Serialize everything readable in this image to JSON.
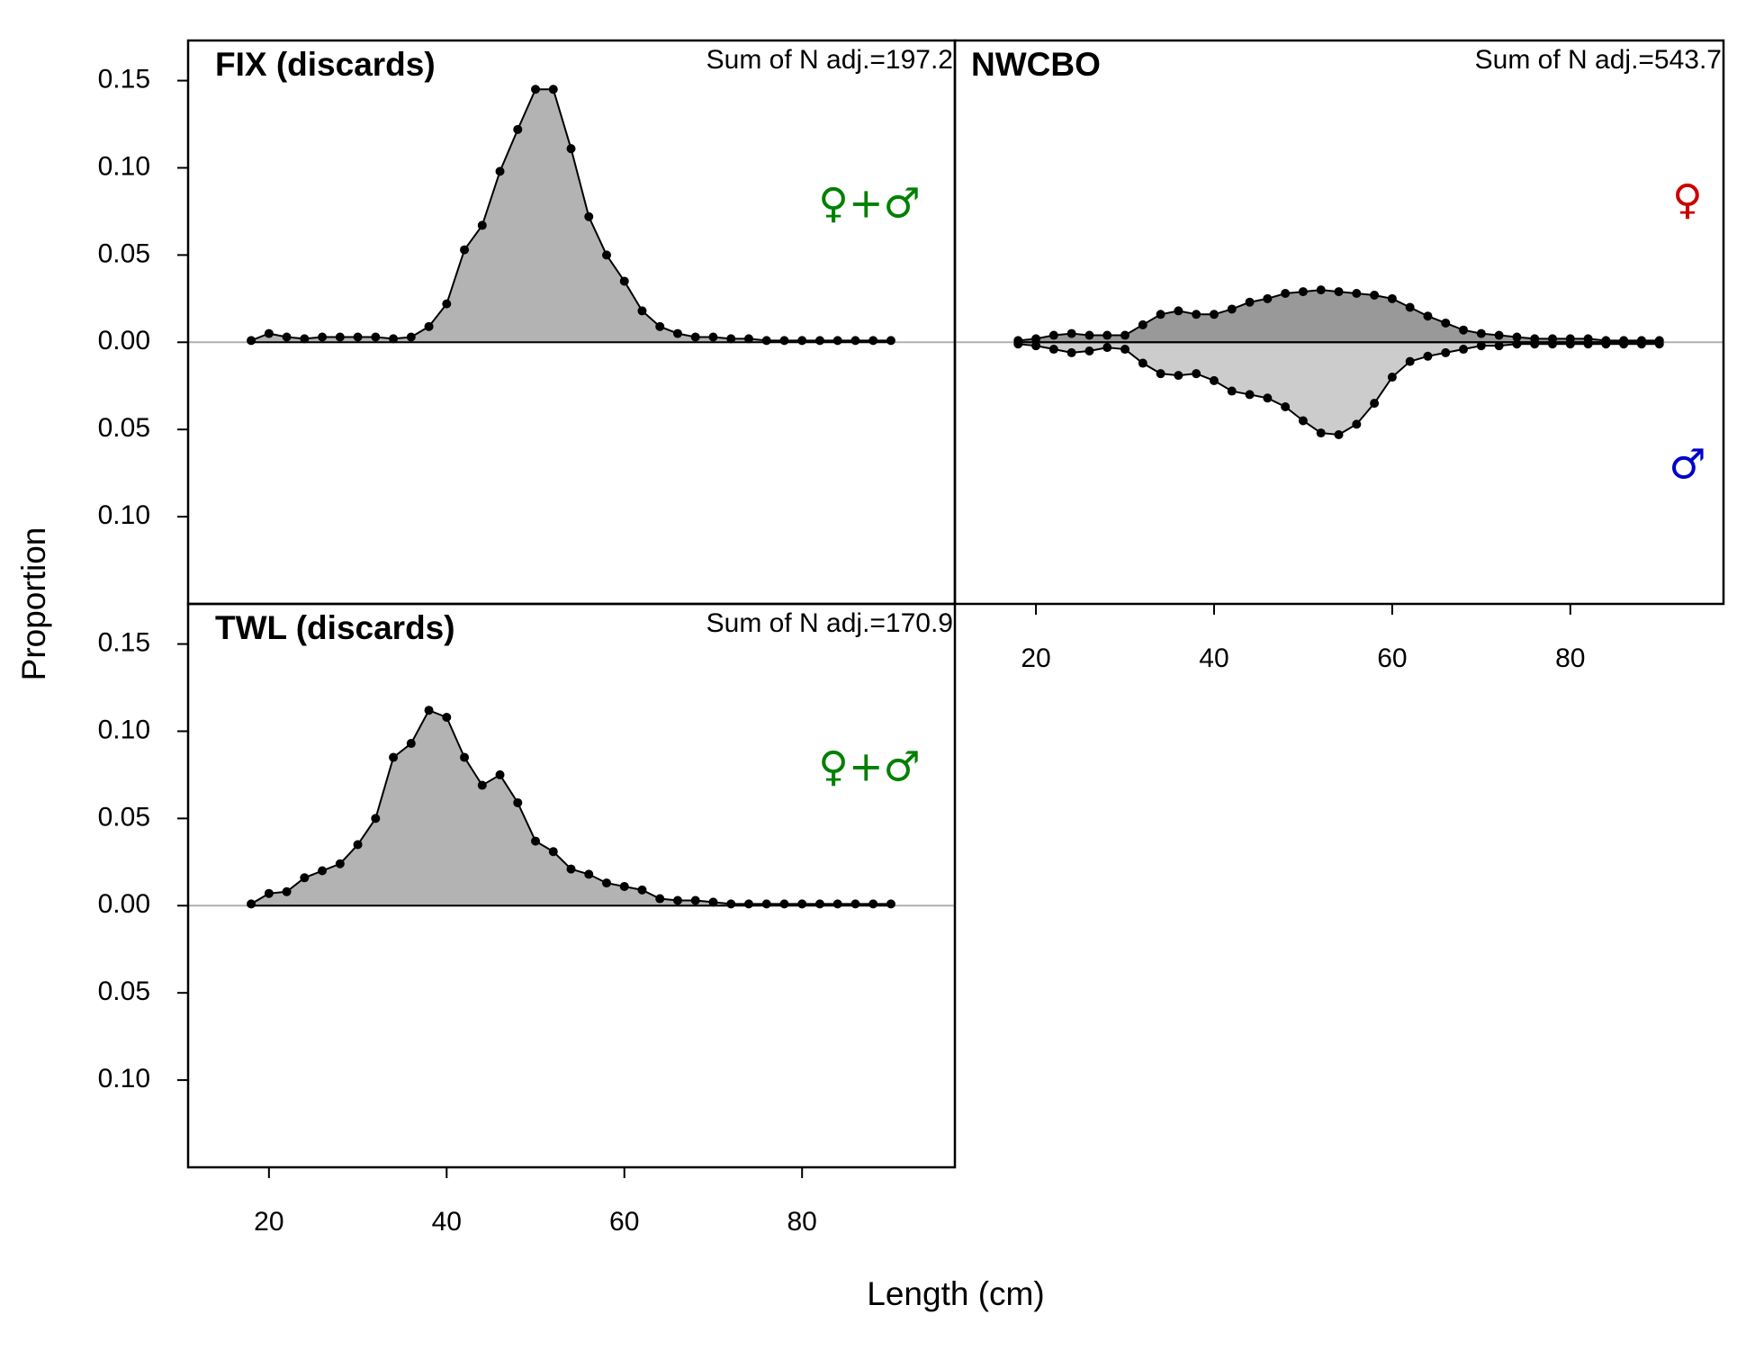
{
  "xlabel": "Length (cm)",
  "ylabel": "Proportion",
  "chart_data": [
    {
      "type": "area",
      "title": "FIX (discards)",
      "annotation": "Sum of N adj.=197.2",
      "x": [
        18,
        20,
        22,
        24,
        26,
        28,
        30,
        32,
        34,
        36,
        38,
        40,
        42,
        44,
        46,
        48,
        50,
        52,
        54,
        56,
        58,
        60,
        62,
        64,
        66,
        68,
        70,
        72,
        74,
        76,
        78,
        80,
        82,
        84,
        86,
        88,
        90
      ],
      "series": [
        {
          "name": "♀+♂",
          "color": "#008000",
          "fill": "#b3b3b3",
          "values": [
            0.001,
            0.005,
            0.003,
            0.002,
            0.003,
            0.003,
            0.003,
            0.003,
            0.002,
            0.003,
            0.009,
            0.022,
            0.053,
            0.067,
            0.098,
            0.122,
            0.145,
            0.145,
            0.111,
            0.072,
            0.05,
            0.035,
            0.018,
            0.009,
            0.005,
            0.003,
            0.003,
            0.002,
            0.002,
            0.001,
            0.001,
            0.001,
            0.001,
            0.001,
            0.001,
            0.001,
            0.001
          ]
        }
      ],
      "xlim": [
        10.9,
        97.2
      ],
      "ylim": [
        -0.15,
        0.173
      ],
      "yticks": [
        0.15,
        {
          "value": 0.1,
          "label": "0.10"
        },
        0.05,
        {
          "value": 0,
          "label": "0.00"
        },
        {
          "value": -0.05,
          "label": "0.05"
        },
        {
          "value": -0.1,
          "label": "0.10"
        }
      ],
      "zero_line": true
    },
    {
      "type": "area",
      "title": "NWCBO",
      "annotation": "Sum of N adj.=543.7",
      "x": [
        18,
        20,
        22,
        24,
        26,
        28,
        30,
        32,
        34,
        36,
        38,
        40,
        42,
        44,
        46,
        48,
        50,
        52,
        54,
        56,
        58,
        60,
        62,
        64,
        66,
        68,
        70,
        72,
        74,
        76,
        78,
        80,
        82,
        84,
        86,
        88,
        90
      ],
      "series": [
        {
          "name": "♀",
          "color": "#cc0000",
          "fill": "#999999",
          "values": [
            0.001,
            0.002,
            0.004,
            0.005,
            0.004,
            0.004,
            0.004,
            0.01,
            0.016,
            0.018,
            0.016,
            0.016,
            0.019,
            0.023,
            0.025,
            0.028,
            0.029,
            0.03,
            0.029,
            0.028,
            0.027,
            0.025,
            0.02,
            0.015,
            0.011,
            0.007,
            0.005,
            0.004,
            0.003,
            0.002,
            0.002,
            0.002,
            0.002,
            0.001,
            0.001,
            0.001,
            0.001
          ]
        },
        {
          "name": "♂",
          "color": "#0000cc",
          "fill": "#cccccc",
          "values": [
            -0.001,
            -0.002,
            -0.004,
            -0.006,
            -0.005,
            -0.003,
            -0.004,
            -0.012,
            -0.018,
            -0.019,
            -0.018,
            -0.022,
            -0.028,
            -0.03,
            -0.032,
            -0.037,
            -0.045,
            -0.052,
            -0.053,
            -0.047,
            -0.035,
            -0.02,
            -0.011,
            -0.008,
            -0.006,
            -0.004,
            -0.002,
            -0.002,
            -0.001,
            -0.001,
            -0.001,
            -0.001,
            -0.001,
            -0.001,
            -0.001,
            -0.001,
            -0.001
          ]
        }
      ],
      "xlim": [
        10.9,
        97.2
      ],
      "ylim": [
        -0.15,
        0.173
      ],
      "xticks": [
        20,
        40,
        60,
        80
      ],
      "zero_line": true
    },
    {
      "type": "area",
      "title": "TWL (discards)",
      "annotation": "Sum of N adj.=170.9",
      "x": [
        18,
        20,
        22,
        24,
        26,
        28,
        30,
        32,
        34,
        36,
        38,
        40,
        42,
        44,
        46,
        48,
        50,
        52,
        54,
        56,
        58,
        60,
        62,
        64,
        66,
        68,
        70,
        72,
        74,
        76,
        78,
        80,
        82,
        84,
        86,
        88,
        90
      ],
      "series": [
        {
          "name": "♀+♂",
          "color": "#008000",
          "fill": "#b3b3b3",
          "values": [
            0.001,
            0.007,
            0.008,
            0.016,
            0.02,
            0.024,
            0.035,
            0.05,
            0.085,
            0.093,
            0.112,
            0.108,
            0.085,
            0.069,
            0.075,
            0.059,
            0.037,
            0.031,
            0.021,
            0.018,
            0.013,
            0.011,
            0.009,
            0.004,
            0.003,
            0.003,
            0.002,
            0.001,
            0.001,
            0.001,
            0.001,
            0.001,
            0.001,
            0.001,
            0.001,
            0.001,
            0.001
          ]
        }
      ],
      "xlim": [
        10.9,
        97.2
      ],
      "ylim": [
        -0.15,
        0.173
      ],
      "yticks": [
        0.15,
        {
          "value": 0.1,
          "label": "0.10"
        },
        0.05,
        {
          "value": 0,
          "label": "0.00"
        },
        {
          "value": -0.05,
          "label": "0.05"
        },
        {
          "value": -0.1,
          "label": "0.10"
        }
      ],
      "xticks": [
        20,
        40,
        60,
        80
      ],
      "zero_line": true
    }
  ]
}
